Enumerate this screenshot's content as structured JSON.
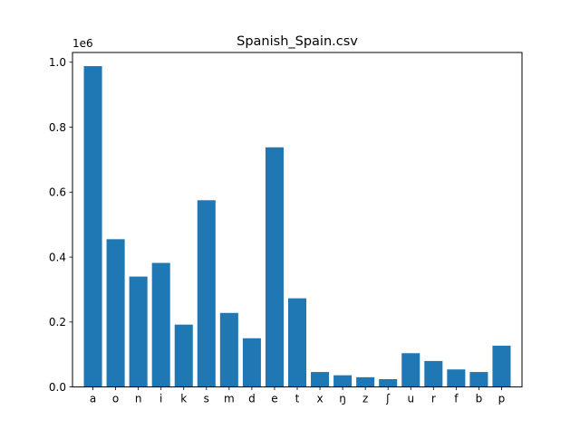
{
  "chart_data": {
    "type": "bar",
    "title": "Spanish_Spain.csv",
    "offset_label": "1e6",
    "xlabel": "",
    "ylabel": "",
    "ylim": [
      0,
      1.03
    ],
    "yticks": [
      0.0,
      0.2,
      0.4,
      0.6,
      0.8,
      1.0
    ],
    "ytick_labels": [
      "0.0",
      "0.2",
      "0.4",
      "0.6",
      "0.8",
      "1.0"
    ],
    "categories": [
      "a",
      "o",
      "n",
      "i",
      "k",
      "s",
      "m",
      "d",
      "e",
      "t",
      "x",
      "ŋ",
      "z",
      "ʃ",
      "u",
      "r",
      "f",
      "b",
      "p"
    ],
    "values": [
      0.988,
      0.455,
      0.34,
      0.382,
      0.192,
      0.575,
      0.228,
      0.15,
      0.738,
      0.273,
      0.046,
      0.036,
      0.03,
      0.024,
      0.104,
      0.08,
      0.054,
      0.046,
      0.127
    ],
    "bar_color": "#1f77b4",
    "grid": false,
    "legend": "none"
  }
}
